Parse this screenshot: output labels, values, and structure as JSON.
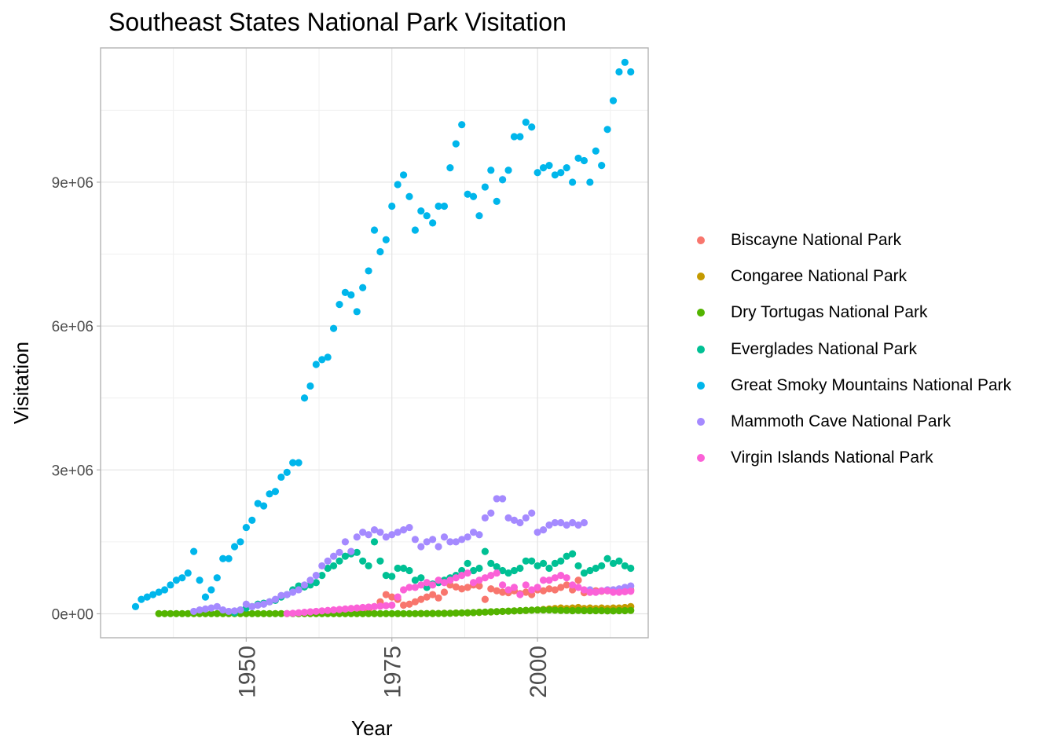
{
  "chart_data": {
    "type": "scatter",
    "title": "Southeast States National Park Visitation",
    "xlabel": "Year",
    "ylabel": "Visitation",
    "xlim": [
      1925,
      2019
    ],
    "ylim": [
      -500000,
      11800000
    ],
    "x_ticks": [
      1950,
      1975,
      2000
    ],
    "x_tick_labels": [
      "1950",
      "1975",
      "2000"
    ],
    "y_ticks": [
      0,
      3000000,
      6000000,
      9000000
    ],
    "y_tick_labels": [
      "0e+00",
      "3e+06",
      "6e+06",
      "9e+06"
    ],
    "grid": true,
    "legend_position": "right",
    "series": [
      {
        "name": "Biscayne National Park",
        "color": "#F8766D",
        "x": [
          1969,
          1970,
          1971,
          1972,
          1973,
          1974,
          1975,
          1976,
          1977,
          1978,
          1979,
          1980,
          1981,
          1982,
          1983,
          1984,
          1985,
          1986,
          1987,
          1988,
          1989,
          1990,
          1991,
          1992,
          1993,
          1994,
          1995,
          1996,
          1997,
          1998,
          1999,
          2000,
          2001,
          2002,
          2003,
          2004,
          2005,
          2006,
          2007,
          2008,
          2009,
          2010,
          2011,
          2012,
          2013,
          2014,
          2015,
          2016
        ],
        "y": [
          20000,
          40000,
          80000,
          150000,
          250000,
          400000,
          350000,
          300000,
          180000,
          200000,
          250000,
          300000,
          350000,
          400000,
          330000,
          450000,
          600000,
          560000,
          520000,
          550000,
          600000,
          580000,
          300000,
          520000,
          480000,
          450000,
          440000,
          480000,
          420000,
          450000,
          400000,
          500000,
          480000,
          520000,
          500000,
          550000,
          600000,
          500000,
          700000,
          440000,
          450000,
          480000,
          470000,
          480000,
          500000,
          480000,
          480000,
          500000
        ]
      },
      {
        "name": "Congaree National Park",
        "color": "#C49A00",
        "x": [
          1980,
          1982,
          1984,
          1986,
          1988,
          1990,
          1992,
          1994,
          1996,
          1998,
          2000,
          2001,
          2002,
          2003,
          2004,
          2005,
          2006,
          2007,
          2008,
          2009,
          2010,
          2011,
          2012,
          2013,
          2014,
          2015,
          2016
        ],
        "y": [
          5000,
          8000,
          10000,
          15000,
          20000,
          30000,
          40000,
          50000,
          60000,
          70000,
          80000,
          90000,
          100000,
          110000,
          120000,
          110000,
          120000,
          130000,
          110000,
          120000,
          110000,
          120000,
          110000,
          120000,
          120000,
          130000,
          150000
        ]
      },
      {
        "name": "Dry Tortugas National Park",
        "color": "#53B400",
        "x": [
          1935,
          1936,
          1937,
          1938,
          1939,
          1940,
          1941,
          1942,
          1943,
          1944,
          1945,
          1946,
          1947,
          1948,
          1949,
          1950,
          1951,
          1952,
          1953,
          1954,
          1955,
          1956,
          1957,
          1958,
          1959,
          1960,
          1961,
          1962,
          1963,
          1964,
          1965,
          1966,
          1967,
          1968,
          1969,
          1970,
          1971,
          1972,
          1973,
          1974,
          1975,
          1976,
          1977,
          1978,
          1979,
          1980,
          1981,
          1982,
          1983,
          1984,
          1985,
          1986,
          1987,
          1988,
          1989,
          1990,
          1991,
          1992,
          1993,
          1994,
          1995,
          1996,
          1997,
          1998,
          1999,
          2000,
          2001,
          2002,
          2003,
          2004,
          2005,
          2006,
          2007,
          2008,
          2009,
          2010,
          2011,
          2012,
          2013,
          2014,
          2015,
          2016
        ],
        "y": [
          3000,
          3000,
          3000,
          3000,
          3000,
          3000,
          3000,
          3000,
          3000,
          3000,
          3000,
          3000,
          3000,
          3000,
          3000,
          3000,
          3000,
          3000,
          3000,
          3000,
          3000,
          3000,
          3000,
          3000,
          3000,
          3000,
          3000,
          3000,
          3000,
          3000,
          3000,
          3000,
          3000,
          3000,
          3000,
          3000,
          3000,
          3000,
          3000,
          3000,
          3000,
          3000,
          3000,
          3000,
          3000,
          5000,
          5000,
          6000,
          7000,
          8000,
          10000,
          15000,
          18000,
          20000,
          25000,
          30000,
          35000,
          40000,
          45000,
          50000,
          55000,
          60000,
          65000,
          70000,
          75000,
          80000,
          80000,
          80000,
          75000,
          70000,
          70000,
          65000,
          70000,
          65000,
          65000,
          65000,
          65000,
          60000,
          60000,
          65000,
          65000,
          70000
        ]
      },
      {
        "name": "Everglades National Park",
        "color": "#00C094",
        "x": [
          1948,
          1949,
          1950,
          1951,
          1952,
          1953,
          1954,
          1955,
          1956,
          1957,
          1958,
          1959,
          1960,
          1961,
          1962,
          1963,
          1964,
          1965,
          1966,
          1967,
          1968,
          1969,
          1970,
          1971,
          1972,
          1973,
          1974,
          1975,
          1976,
          1977,
          1978,
          1979,
          1980,
          1981,
          1982,
          1983,
          1984,
          1985,
          1986,
          1987,
          1988,
          1989,
          1990,
          1991,
          1992,
          1993,
          1994,
          1995,
          1996,
          1997,
          1998,
          1999,
          2000,
          2001,
          2002,
          2003,
          2004,
          2005,
          2006,
          2007,
          2008,
          2009,
          2010,
          2011,
          2012,
          2013,
          2014,
          2015,
          2016
        ],
        "y": [
          20000,
          80000,
          120000,
          150000,
          200000,
          220000,
          250000,
          280000,
          350000,
          400000,
          500000,
          580000,
          560000,
          600000,
          650000,
          800000,
          950000,
          1000000,
          1100000,
          1200000,
          1250000,
          1280000,
          1100000,
          1000000,
          1500000,
          1100000,
          800000,
          780000,
          950000,
          950000,
          900000,
          700000,
          750000,
          550000,
          620000,
          650000,
          700000,
          750000,
          800000,
          900000,
          1050000,
          900000,
          950000,
          1300000,
          1050000,
          980000,
          900000,
          850000,
          900000,
          950000,
          1100000,
          1100000,
          1000000,
          1050000,
          950000,
          1050000,
          1100000,
          1200000,
          1250000,
          1000000,
          850000,
          900000,
          950000,
          1000000,
          1150000,
          1050000,
          1100000,
          1000000,
          950000
        ]
      },
      {
        "name": "Great Smoky Mountains National Park",
        "color": "#00B6EB",
        "x": [
          1931,
          1932,
          1933,
          1934,
          1935,
          1936,
          1937,
          1938,
          1939,
          1940,
          1941,
          1942,
          1943,
          1944,
          1945,
          1946,
          1947,
          1948,
          1949,
          1950,
          1951,
          1952,
          1953,
          1954,
          1955,
          1956,
          1957,
          1958,
          1959,
          1960,
          1961,
          1962,
          1963,
          1964,
          1965,
          1966,
          1967,
          1968,
          1969,
          1970,
          1971,
          1972,
          1973,
          1974,
          1975,
          1976,
          1977,
          1978,
          1979,
          1980,
          1981,
          1982,
          1983,
          1984,
          1985,
          1986,
          1987,
          1988,
          1989,
          1990,
          1991,
          1992,
          1993,
          1994,
          1995,
          1996,
          1997,
          1998,
          1999,
          2000,
          2001,
          2002,
          2003,
          2004,
          2005,
          2006,
          2007,
          2008,
          2009,
          2010,
          2011,
          2012,
          2013,
          2014,
          2015,
          2016
        ],
        "y": [
          150000,
          300000,
          350000,
          400000,
          450000,
          500000,
          600000,
          700000,
          750000,
          850000,
          1300000,
          700000,
          350000,
          500000,
          750000,
          1150000,
          1150000,
          1400000,
          1500000,
          1800000,
          1950000,
          2300000,
          2250000,
          2500000,
          2550000,
          2850000,
          2950000,
          3150000,
          3150000,
          4500000,
          4750000,
          5200000,
          5300000,
          5350000,
          5950000,
          6450000,
          6700000,
          6650000,
          6300000,
          6800000,
          7150000,
          8000000,
          7550000,
          7800000,
          8500000,
          8950000,
          9150000,
          8700000,
          8000000,
          8400000,
          8300000,
          8150000,
          8500000,
          8500000,
          9300000,
          9800000,
          10200000,
          8750000,
          8700000,
          8300000,
          8900000,
          9250000,
          8600000,
          9050000,
          9250000,
          9950000,
          9950000,
          10250000,
          10150000,
          9200000,
          9300000,
          9350000,
          9150000,
          9200000,
          9300000,
          9000000,
          9500000,
          9450000,
          9000000,
          9650000,
          9350000,
          10100000,
          10700000,
          11300000,
          11500000,
          11300000
        ]
      },
      {
        "name": "Mammoth Cave National Park",
        "color": "#A58AFF",
        "x": [
          1941,
          1942,
          1943,
          1944,
          1945,
          1946,
          1947,
          1948,
          1949,
          1950,
          1951,
          1952,
          1953,
          1954,
          1955,
          1956,
          1957,
          1958,
          1959,
          1960,
          1961,
          1962,
          1963,
          1964,
          1965,
          1966,
          1967,
          1968,
          1969,
          1970,
          1971,
          1972,
          1973,
          1974,
          1975,
          1976,
          1977,
          1978,
          1979,
          1980,
          1981,
          1982,
          1983,
          1984,
          1985,
          1986,
          1987,
          1988,
          1989,
          1990,
          1991,
          1992,
          1993,
          1994,
          1995,
          1996,
          1997,
          1998,
          1999,
          2000,
          2001,
          2002,
          2003,
          2004,
          2005,
          2006,
          2007,
          2008,
          2009,
          2010,
          2011,
          2012,
          2013,
          2014,
          2015,
          2016
        ],
        "y": [
          50000,
          80000,
          100000,
          120000,
          150000,
          80000,
          50000,
          60000,
          80000,
          200000,
          150000,
          180000,
          200000,
          250000,
          300000,
          380000,
          400000,
          450000,
          500000,
          600000,
          700000,
          800000,
          1000000,
          1100000,
          1200000,
          1280000,
          1500000,
          1300000,
          1600000,
          1700000,
          1650000,
          1750000,
          1700000,
          1600000,
          1650000,
          1700000,
          1750000,
          1800000,
          1550000,
          1400000,
          1500000,
          1550000,
          1400000,
          1600000,
          1500000,
          1500000,
          1550000,
          1600000,
          1700000,
          1650000,
          2000000,
          2100000,
          2400000,
          2400000,
          2000000,
          1950000,
          1900000,
          2000000,
          2100000,
          1700000,
          1750000,
          1850000,
          1900000,
          1900000,
          1850000,
          1900000,
          1850000,
          1900000,
          500000,
          450000,
          480000,
          500000,
          500000,
          520000,
          550000,
          580000
        ]
      },
      {
        "name": "Virgin Islands National Park",
        "color": "#FB61D7",
        "x": [
          1957,
          1958,
          1959,
          1960,
          1961,
          1962,
          1963,
          1964,
          1965,
          1966,
          1967,
          1968,
          1969,
          1970,
          1971,
          1972,
          1973,
          1974,
          1975,
          1976,
          1977,
          1978,
          1979,
          1980,
          1981,
          1982,
          1983,
          1984,
          1985,
          1986,
          1987,
          1988,
          1989,
          1990,
          1991,
          1992,
          1993,
          1994,
          1995,
          1996,
          1997,
          1998,
          1999,
          2000,
          2001,
          2002,
          2003,
          2004,
          2005,
          2006,
          2007,
          2008,
          2009,
          2010,
          2011,
          2012,
          2013,
          2014,
          2015,
          2016
        ],
        "y": [
          5000,
          10000,
          20000,
          30000,
          40000,
          50000,
          60000,
          70000,
          80000,
          90000,
          100000,
          110000,
          120000,
          130000,
          140000,
          150000,
          160000,
          170000,
          180000,
          350000,
          500000,
          550000,
          550000,
          600000,
          650000,
          600000,
          700000,
          650000,
          700000,
          750000,
          800000,
          850000,
          650000,
          700000,
          750000,
          800000,
          850000,
          600000,
          500000,
          550000,
          400000,
          600000,
          500000,
          550000,
          700000,
          700000,
          750000,
          800000,
          750000,
          600000,
          550000,
          500000,
          450000,
          450000,
          480000,
          480000,
          450000,
          450000,
          460000,
          470000
        ]
      }
    ]
  }
}
